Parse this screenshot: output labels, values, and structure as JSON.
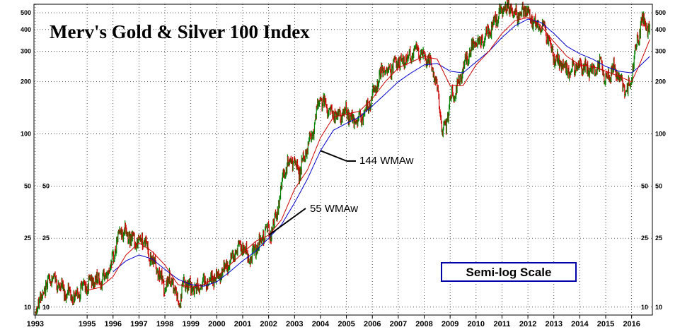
{
  "chart_data": {
    "type": "line",
    "title": "Merv's Gold & Silver 100 Index",
    "y_scale": "log",
    "ylim": [
      9,
      560
    ],
    "xlim": [
      1992.95,
      2016.8
    ],
    "grid": true,
    "y_ticks": [
      10,
      25,
      50,
      100,
      200,
      300,
      400,
      500
    ],
    "y_tick_labels": [
      "10",
      "25",
      "50",
      "100",
      "200",
      "300",
      "400",
      "500"
    ],
    "x_ticks": [
      1993,
      1995,
      1996,
      1997,
      1998,
      1999,
      2000,
      2001,
      2002,
      2003,
      2004,
      2005,
      2006,
      2007,
      2008,
      2009,
      2010,
      2011,
      2012,
      2013,
      2014,
      2015,
      2016
    ],
    "x_tick_labels": [
      "1993",
      "1995",
      "1996",
      "1997",
      "1998",
      "1999",
      "2000",
      "2001",
      "2002",
      "2003",
      "2004",
      "2005",
      "2006",
      "2007",
      "2008",
      "2009",
      "2010",
      "2011",
      "2012",
      "2013",
      "2014",
      "2015",
      "2016"
    ],
    "series": [
      {
        "name": "",
        "kind": "weekly-bars",
        "color_up": "#008000",
        "color_down": "#cc0000",
        "x": [
          1993.0,
          1993.3,
          1993.6,
          1993.9,
          1994.2,
          1994.5,
          1994.8,
          1995.0,
          1995.3,
          1995.6,
          1995.9,
          1996.1,
          1996.3,
          1996.6,
          1996.9,
          1997.2,
          1997.4,
          1997.7,
          1998.0,
          1998.2,
          1998.4,
          1998.6,
          1998.7,
          1998.9,
          1999.2,
          1999.5,
          1999.8,
          2000.1,
          2000.4,
          2000.7,
          2001.0,
          2001.3,
          2001.6,
          2001.9,
          2002.1,
          2002.3,
          2002.6,
          2002.9,
          2003.2,
          2003.5,
          2003.8,
          2003.95,
          2004.2,
          2004.5,
          2004.8,
          2005.0,
          2005.3,
          2005.6,
          2005.9,
          2006.2,
          2006.4,
          2006.6,
          2006.9,
          2007.2,
          2007.5,
          2007.8,
          2008.1,
          2008.3,
          2008.5,
          2008.7,
          2008.85,
          2009.0,
          2009.3,
          2009.6,
          2009.9,
          2010.2,
          2010.5,
          2010.8,
          2011.0,
          2011.3,
          2011.6,
          2011.9,
          2012.2,
          2012.5,
          2012.8,
          2013.0,
          2013.3,
          2013.6,
          2013.9,
          2014.2,
          2014.5,
          2014.8,
          2015.0,
          2015.3,
          2015.6,
          2015.85,
          2016.0,
          2016.2,
          2016.4,
          2016.55,
          2016.7
        ],
        "values": [
          9.5,
          12,
          15,
          13.5,
          12,
          11.5,
          13,
          13.5,
          14.5,
          14,
          17,
          22,
          28,
          26,
          24,
          25,
          20,
          17,
          12.5,
          15,
          12,
          10.5,
          14,
          13,
          12.5,
          14,
          14.5,
          15.5,
          17,
          21,
          22,
          19,
          23,
          28,
          27,
          33,
          62,
          70,
          60,
          85,
          115,
          160,
          145,
          130,
          125,
          135,
          115,
          125,
          150,
          200,
          240,
          230,
          255,
          270,
          285,
          300,
          270,
          240,
          180,
          100,
          110,
          160,
          190,
          260,
          330,
          340,
          390,
          480,
          520,
          540,
          480,
          520,
          440,
          430,
          360,
          280,
          250,
          230,
          250,
          240,
          230,
          250,
          210,
          240,
          200,
          175,
          220,
          340,
          440,
          430,
          380
        ]
      },
      {
        "name": "55 WMAw",
        "kind": "line",
        "color": "#cc0000",
        "x": [
          1995.0,
          1995.5,
          1996.0,
          1996.5,
          1997.0,
          1997.5,
          1998.0,
          1998.5,
          1999.0,
          1999.5,
          2000.0,
          2000.5,
          2001.0,
          2001.5,
          2002.0,
          2002.5,
          2003.0,
          2003.5,
          2004.0,
          2004.5,
          2005.0,
          2005.5,
          2006.0,
          2006.5,
          2007.0,
          2007.5,
          2008.0,
          2008.5,
          2009.0,
          2009.5,
          2010.0,
          2010.5,
          2011.0,
          2011.5,
          2012.0,
          2012.5,
          2013.0,
          2013.5,
          2014.0,
          2014.5,
          2015.0,
          2015.5,
          2016.0,
          2016.3,
          2016.7
        ],
        "values": [
          12.5,
          13,
          15,
          20,
          23.5,
          21,
          17.5,
          13.5,
          13,
          13.5,
          15,
          17.5,
          20.5,
          24,
          26,
          32,
          48,
          62,
          95,
          125,
          130,
          135,
          160,
          200,
          240,
          260,
          280,
          270,
          190,
          190,
          250,
          300,
          380,
          450,
          470,
          420,
          340,
          280,
          250,
          245,
          230,
          215,
          200,
          250,
          350
        ]
      },
      {
        "name": "144 WMAw",
        "kind": "line",
        "color": "#0000cc",
        "x": [
          1996.0,
          1996.5,
          1997.0,
          1997.5,
          1998.0,
          1998.5,
          1999.0,
          1999.5,
          2000.0,
          2000.5,
          2001.0,
          2001.5,
          2002.0,
          2002.5,
          2003.0,
          2003.5,
          2004.0,
          2004.5,
          2005.0,
          2005.5,
          2006.0,
          2006.5,
          2007.0,
          2007.5,
          2008.0,
          2008.5,
          2009.0,
          2009.5,
          2010.0,
          2010.5,
          2011.0,
          2011.5,
          2012.0,
          2012.5,
          2013.0,
          2013.5,
          2014.0,
          2014.5,
          2015.0,
          2015.5,
          2016.0,
          2016.3,
          2016.7
        ],
        "values": [
          16,
          18.5,
          20,
          19,
          16.5,
          14.5,
          13.5,
          13.2,
          14,
          16,
          18.5,
          21,
          25,
          30,
          40,
          55,
          80,
          105,
          115,
          125,
          145,
          170,
          200,
          225,
          250,
          255,
          230,
          225,
          260,
          300,
          360,
          420,
          460,
          440,
          380,
          320,
          290,
          270,
          245,
          230,
          225,
          245,
          280
        ]
      }
    ],
    "annotations": [
      {
        "text": "144 WMAw",
        "points_to": [
          2004.0,
          80
        ]
      },
      {
        "text": "55 WMAw",
        "points_to": [
          2002.0,
          26
        ]
      },
      {
        "text": "Semi-log Scale",
        "boxed": true
      }
    ]
  }
}
